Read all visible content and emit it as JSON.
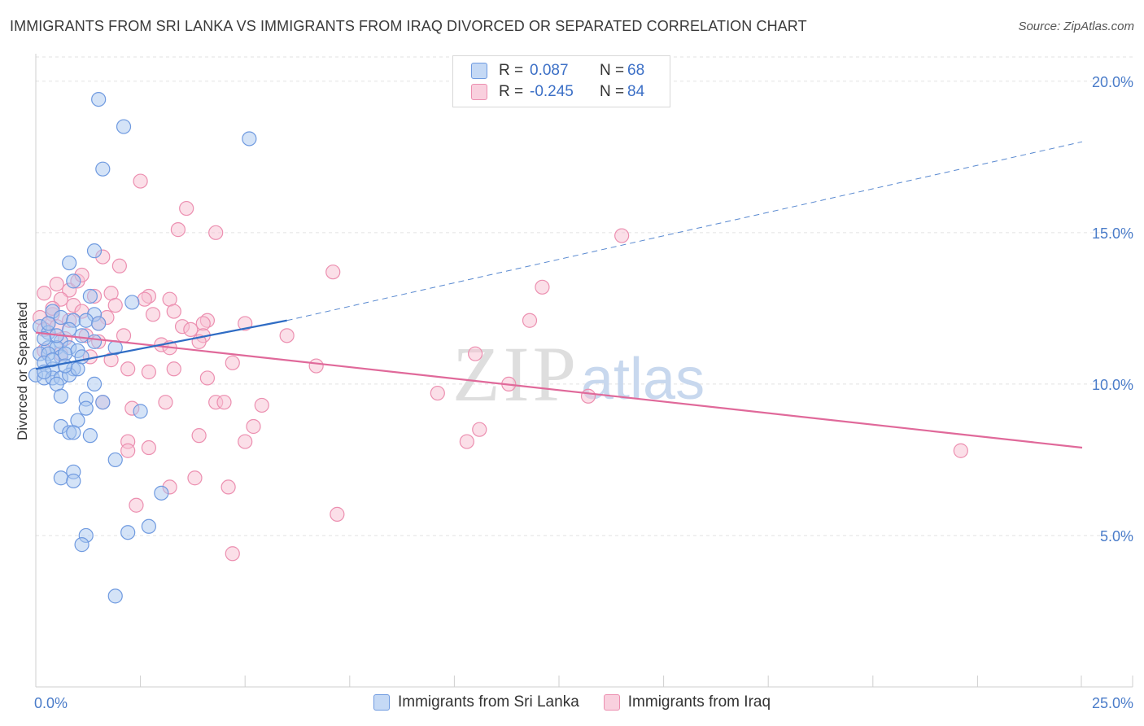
{
  "title": "IMMIGRANTS FROM SRI LANKA VS IMMIGRANTS FROM IRAQ DIVORCED OR SEPARATED CORRELATION CHART",
  "source": "Source: ZipAtlas.com",
  "watermark": {
    "zip": "ZIP",
    "atlas": "atlas"
  },
  "legend": {
    "series1": {
      "r_label": "R =",
      "r_value": "0.087",
      "n_label": "N =",
      "n_value": "68"
    },
    "series2": {
      "r_label": "R =",
      "r_value": "-0.245",
      "n_label": "N =",
      "n_value": "84"
    }
  },
  "colors": {
    "blue_fill": "#aac8f0",
    "blue_stroke": "#6f9ae0",
    "blue_line": "#2f6cc4",
    "pink_fill": "#f7bfd2",
    "pink_stroke": "#ec8fb0",
    "pink_line": "#e0699a",
    "axis_text": "#4a7cc9",
    "grid": "#e2e2e2"
  },
  "chart_data": {
    "type": "scatter",
    "title": "IMMIGRANTS FROM SRI LANKA VS IMMIGRANTS FROM IRAQ DIVORCED OR SEPARATED CORRELATION CHART",
    "xlabel": "",
    "ylabel": "Divorced or Separated",
    "xlim": [
      0,
      25
    ],
    "ylim": [
      0,
      20.8
    ],
    "x_ticks": [
      {
        "value": 0,
        "label": "0.0%"
      },
      {
        "value": 25,
        "label": "25.0%"
      }
    ],
    "x_minor_ticks": [
      2.5,
      5,
      7.5,
      10,
      12.5,
      15,
      17.5,
      20,
      22.5,
      25
    ],
    "y_ticks": [
      {
        "value": 5,
        "label": "5.0%"
      },
      {
        "value": 10,
        "label": "10.0%"
      },
      {
        "value": 15,
        "label": "15.0%"
      },
      {
        "value": 20,
        "label": "20.0%"
      }
    ],
    "grid": true,
    "legend_position": "top-center",
    "series": [
      {
        "name": "Immigrants from Sri Lanka",
        "color": "blue",
        "R": 0.087,
        "N": 68,
        "trend": {
          "solid": [
            [
              0,
              10.5
            ],
            [
              6,
              12.1
            ]
          ],
          "dashed": [
            [
              6,
              12.1
            ],
            [
              25,
              18.0
            ]
          ]
        },
        "points": [
          [
            1.5,
            19.4
          ],
          [
            2.1,
            18.5
          ],
          [
            5.1,
            18.1
          ],
          [
            1.6,
            17.1
          ],
          [
            1.4,
            14.4
          ],
          [
            0.8,
            14.0
          ],
          [
            0.9,
            13.4
          ],
          [
            1.3,
            12.9
          ],
          [
            2.3,
            12.7
          ],
          [
            0.4,
            12.4
          ],
          [
            0.6,
            12.2
          ],
          [
            1.4,
            12.3
          ],
          [
            0.9,
            12.1
          ],
          [
            1.2,
            12.1
          ],
          [
            1.5,
            12.0
          ],
          [
            0.1,
            11.9
          ],
          [
            0.3,
            11.7
          ],
          [
            1.1,
            11.6
          ],
          [
            0.6,
            11.4
          ],
          [
            1.4,
            11.4
          ],
          [
            0.3,
            11.2
          ],
          [
            0.5,
            11.2
          ],
          [
            0.8,
            11.2
          ],
          [
            1.0,
            11.1
          ],
          [
            1.9,
            11.2
          ],
          [
            0.1,
            11.0
          ],
          [
            0.3,
            11.0
          ],
          [
            0.6,
            10.9
          ],
          [
            0.2,
            10.7
          ],
          [
            0.4,
            10.5
          ],
          [
            0.9,
            10.5
          ],
          [
            0.0,
            10.3
          ],
          [
            0.2,
            10.2
          ],
          [
            0.4,
            10.2
          ],
          [
            0.6,
            10.2
          ],
          [
            0.8,
            10.3
          ],
          [
            0.5,
            10.0
          ],
          [
            1.4,
            10.0
          ],
          [
            0.6,
            9.6
          ],
          [
            1.2,
            9.5
          ],
          [
            1.6,
            9.4
          ],
          [
            2.5,
            9.1
          ],
          [
            1.2,
            9.2
          ],
          [
            1.0,
            8.8
          ],
          [
            0.6,
            8.6
          ],
          [
            0.8,
            8.4
          ],
          [
            0.9,
            8.4
          ],
          [
            1.3,
            8.3
          ],
          [
            1.9,
            7.5
          ],
          [
            0.9,
            7.1
          ],
          [
            0.6,
            6.9
          ],
          [
            0.9,
            6.8
          ],
          [
            3.0,
            6.4
          ],
          [
            2.7,
            5.3
          ],
          [
            2.2,
            5.1
          ],
          [
            1.2,
            5.0
          ],
          [
            1.1,
            4.7
          ],
          [
            1.9,
            3.0
          ],
          [
            0.2,
            11.5
          ],
          [
            0.7,
            11.0
          ],
          [
            0.4,
            10.8
          ],
          [
            1.0,
            10.5
          ],
          [
            0.3,
            12.0
          ],
          [
            0.8,
            11.8
          ],
          [
            0.2,
            10.4
          ],
          [
            1.1,
            10.9
          ],
          [
            0.5,
            11.6
          ],
          [
            0.7,
            10.6
          ]
        ]
      },
      {
        "name": "Immigrants from Iraq",
        "color": "pink",
        "R": -0.245,
        "N": 84,
        "trend": {
          "solid": [
            [
              0,
              11.7
            ],
            [
              25,
              7.9
            ]
          ]
        },
        "points": [
          [
            2.5,
            16.7
          ],
          [
            3.6,
            15.8
          ],
          [
            3.4,
            15.1
          ],
          [
            4.3,
            15.0
          ],
          [
            14.0,
            14.9
          ],
          [
            1.6,
            14.2
          ],
          [
            2.0,
            13.9
          ],
          [
            7.1,
            13.7
          ],
          [
            0.5,
            13.3
          ],
          [
            0.8,
            13.1
          ],
          [
            1.0,
            13.4
          ],
          [
            1.1,
            13.6
          ],
          [
            12.1,
            13.2
          ],
          [
            0.2,
            13.0
          ],
          [
            1.4,
            12.9
          ],
          [
            1.8,
            13.0
          ],
          [
            2.7,
            12.9
          ],
          [
            2.6,
            12.8
          ],
          [
            3.2,
            12.8
          ],
          [
            0.6,
            12.8
          ],
          [
            0.9,
            12.6
          ],
          [
            1.9,
            12.6
          ],
          [
            0.4,
            12.3
          ],
          [
            1.1,
            12.4
          ],
          [
            3.3,
            12.4
          ],
          [
            0.1,
            12.2
          ],
          [
            0.3,
            12.0
          ],
          [
            0.8,
            12.1
          ],
          [
            1.7,
            12.2
          ],
          [
            4.1,
            12.1
          ],
          [
            4.0,
            12.0
          ],
          [
            5.0,
            12.0
          ],
          [
            11.8,
            12.1
          ],
          [
            3.5,
            11.9
          ],
          [
            0.2,
            11.8
          ],
          [
            0.5,
            11.9
          ],
          [
            3.7,
            11.8
          ],
          [
            4.0,
            11.6
          ],
          [
            6.0,
            11.6
          ],
          [
            1.2,
            11.6
          ],
          [
            2.1,
            11.6
          ],
          [
            3.0,
            11.3
          ],
          [
            3.2,
            11.2
          ],
          [
            1.5,
            11.4
          ],
          [
            0.6,
            11.0
          ],
          [
            0.2,
            11.1
          ],
          [
            10.5,
            11.0
          ],
          [
            1.8,
            10.8
          ],
          [
            4.7,
            10.7
          ],
          [
            6.7,
            10.6
          ],
          [
            3.3,
            10.5
          ],
          [
            2.2,
            10.5
          ],
          [
            2.7,
            10.4
          ],
          [
            4.1,
            10.2
          ],
          [
            11.3,
            10.0
          ],
          [
            9.6,
            9.7
          ],
          [
            13.2,
            9.6
          ],
          [
            1.6,
            9.4
          ],
          [
            3.1,
            9.4
          ],
          [
            4.3,
            9.4
          ],
          [
            4.5,
            9.4
          ],
          [
            5.4,
            9.3
          ],
          [
            2.3,
            9.2
          ],
          [
            10.6,
            8.5
          ],
          [
            5.2,
            8.6
          ],
          [
            10.3,
            8.1
          ],
          [
            2.2,
            8.1
          ],
          [
            3.9,
            8.3
          ],
          [
            5.0,
            8.1
          ],
          [
            2.7,
            7.9
          ],
          [
            2.2,
            7.8
          ],
          [
            22.1,
            7.8
          ],
          [
            3.8,
            6.9
          ],
          [
            3.2,
            6.6
          ],
          [
            4.6,
            6.6
          ],
          [
            2.4,
            6.0
          ],
          [
            7.2,
            5.7
          ],
          [
            4.7,
            4.4
          ],
          [
            1.5,
            12.0
          ],
          [
            0.7,
            11.5
          ],
          [
            2.8,
            12.3
          ],
          [
            1.3,
            10.9
          ],
          [
            0.4,
            12.5
          ],
          [
            3.9,
            11.4
          ]
        ]
      }
    ]
  },
  "bottom_legend": {
    "series1_label": "Immigrants from Sri Lanka",
    "series2_label": "Immigrants from Iraq"
  }
}
